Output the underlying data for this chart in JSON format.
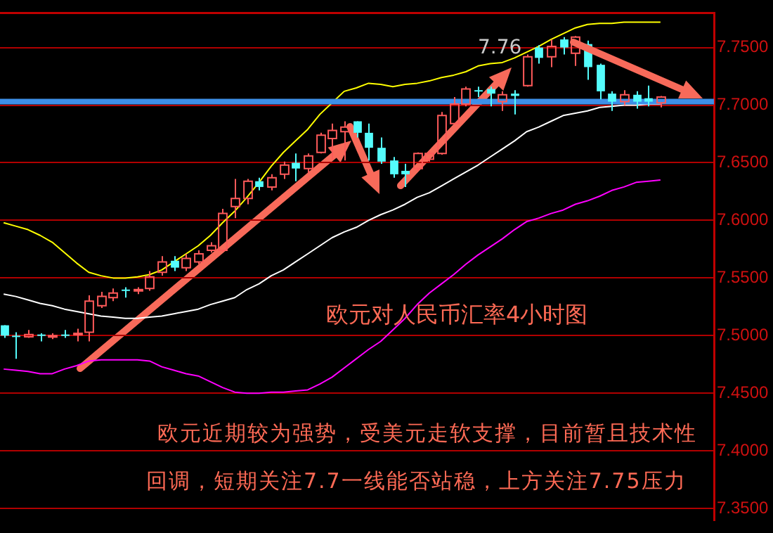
{
  "chart_data": {
    "type": "candlestick",
    "title": "欧元对人民币汇率4小时图",
    "annotations": [
      "欧元近期较为强势，受美元走软支撑，目前暂且技术性",
      "回调，短期关注7.7一线能否站稳，上方关注7.75压力",
      "7.76"
    ],
    "categories": [
      null,
      null,
      null,
      null,
      null,
      null,
      null,
      null,
      null,
      null,
      null,
      null,
      null,
      null,
      null,
      null,
      null,
      null,
      null,
      null,
      null,
      null,
      null,
      null,
      null,
      null,
      null,
      null,
      null,
      null,
      null,
      null,
      null,
      null,
      null,
      null,
      null,
      null,
      null,
      null,
      null,
      null,
      null,
      null,
      null,
      null,
      null,
      null,
      null,
      null,
      null,
      null,
      null,
      null,
      null
    ],
    "ohlc": [
      [
        7.509,
        7.509,
        7.498,
        7.5
      ],
      [
        7.5,
        7.503,
        7.48,
        7.499
      ],
      [
        7.499,
        7.505,
        7.498,
        7.501
      ],
      [
        7.501,
        7.502,
        7.495,
        7.5
      ],
      [
        7.499,
        7.502,
        7.497,
        7.5
      ],
      [
        7.501,
        7.505,
        7.498,
        7.5
      ],
      [
        7.501,
        7.506,
        7.495,
        7.502
      ],
      [
        7.503,
        7.535,
        7.495,
        7.53
      ],
      [
        7.526,
        7.538,
        7.524,
        7.534
      ],
      [
        7.533,
        7.541,
        7.53,
        7.537
      ],
      [
        7.54,
        7.542,
        7.533,
        7.539
      ],
      [
        7.539,
        7.542,
        7.536,
        7.54
      ],
      [
        7.541,
        7.556,
        7.539,
        7.551
      ],
      [
        7.555,
        7.569,
        7.552,
        7.564
      ],
      [
        7.565,
        7.569,
        7.556,
        7.559
      ],
      [
        7.559,
        7.571,
        7.556,
        7.567
      ],
      [
        7.564,
        7.574,
        7.562,
        7.571
      ],
      [
        7.574,
        7.581,
        7.572,
        7.578
      ],
      [
        7.574,
        7.61,
        7.573,
        7.606
      ],
      [
        7.612,
        7.636,
        7.602,
        7.619
      ],
      [
        7.619,
        7.636,
        7.614,
        7.634
      ],
      [
        7.634,
        7.637,
        7.626,
        7.629
      ],
      [
        7.629,
        7.64,
        7.626,
        7.637
      ],
      [
        7.64,
        7.651,
        7.636,
        7.648
      ],
      [
        7.65,
        7.658,
        7.634,
        7.645
      ],
      [
        7.645,
        7.658,
        7.641,
        7.656
      ],
      [
        7.659,
        7.676,
        7.658,
        7.674
      ],
      [
        7.671,
        7.684,
        7.653,
        7.678
      ],
      [
        7.677,
        7.686,
        7.652,
        7.681
      ],
      [
        7.686,
        7.686,
        7.672,
        7.676
      ],
      [
        7.676,
        7.684,
        7.652,
        7.663
      ],
      [
        7.663,
        7.672,
        7.649,
        7.651
      ],
      [
        7.652,
        7.655,
        7.637,
        7.64
      ],
      [
        7.643,
        7.649,
        7.629,
        7.64
      ],
      [
        7.645,
        7.659,
        7.643,
        7.658
      ],
      [
        7.653,
        7.66,
        7.651,
        7.658
      ],
      [
        7.658,
        7.694,
        7.657,
        7.691
      ],
      [
        7.684,
        7.707,
        7.684,
        7.701
      ],
      [
        7.701,
        7.716,
        7.699,
        7.714
      ],
      [
        7.713,
        7.716,
        7.707,
        7.712
      ],
      [
        7.714,
        7.716,
        7.699,
        7.71
      ],
      [
        7.703,
        7.712,
        7.695,
        7.709
      ],
      [
        7.71,
        7.713,
        7.692,
        7.708
      ],
      [
        7.717,
        7.744,
        7.716,
        7.742
      ],
      [
        7.75,
        7.752,
        7.736,
        7.741
      ],
      [
        7.742,
        7.757,
        7.733,
        7.751
      ],
      [
        7.757,
        7.759,
        7.744,
        7.75
      ],
      [
        7.745,
        7.76,
        7.734,
        7.759
      ],
      [
        7.753,
        7.756,
        7.722,
        7.733
      ],
      [
        7.735,
        7.736,
        7.705,
        7.712
      ],
      [
        7.71,
        7.712,
        7.695,
        7.703
      ],
      [
        7.703,
        7.713,
        7.7,
        7.709
      ],
      [
        7.709,
        7.712,
        7.697,
        7.703
      ],
      [
        7.706,
        7.717,
        7.699,
        7.703
      ],
      [
        7.702,
        7.708,
        7.698,
        7.707
      ]
    ],
    "colors": [
      "#54fcfc",
      "#54fcfc",
      "#ff5a5a",
      "#54fcfc",
      "#ff5a5a",
      "#54fcfc",
      "#ff5a5a",
      "#ff5a5a",
      "#ff5a5a",
      "#ff5a5a",
      "#54fcfc",
      "#ff5a5a",
      "#ff5a5a",
      "#ff5a5a",
      "#54fcfc",
      "#ff5a5a",
      "#ff5a5a",
      "#ff5a5a",
      "#ff5a5a",
      "#ff5a5a",
      "#ff5a5a",
      "#54fcfc",
      "#ff5a5a",
      "#ff5a5a",
      "#54fcfc",
      "#ff5a5a",
      "#ff5a5a",
      "#ff5a5a",
      "#ff5a5a",
      "#54fcfc",
      "#54fcfc",
      "#54fcfc",
      "#54fcfc",
      "#54fcfc",
      "#ff5a5a",
      "#ff5a5a",
      "#ff5a5a",
      "#ff5a5a",
      "#ff5a5a",
      "#54fcfc",
      "#54fcfc",
      "#ff5a5a",
      "#54fcfc",
      "#ff5a5a",
      "#54fcfc",
      "#ff5a5a",
      "#54fcfc",
      "#ff5a5a",
      "#54fcfc",
      "#54fcfc",
      "#54fcfc",
      "#ff5a5a",
      "#54fcfc",
      "#54fcfc",
      "#ff5a5a"
    ],
    "series": [
      {
        "type": "line",
        "color": "#ffff00",
        "values": [
          7.598,
          7.595,
          7.592,
          7.587,
          7.581,
          7.572,
          7.563,
          7.555,
          7.552,
          7.55,
          7.55,
          7.551,
          7.553,
          7.557,
          7.564,
          7.571,
          7.578,
          7.587,
          7.598,
          7.608,
          7.62,
          7.633,
          7.647,
          7.659,
          7.669,
          7.679,
          7.692,
          7.702,
          7.712,
          7.715,
          7.719,
          7.718,
          7.716,
          7.718,
          7.719,
          7.721,
          7.724,
          7.726,
          7.729,
          7.734,
          7.736,
          7.737,
          7.741,
          7.746,
          7.751,
          7.757,
          7.762,
          7.767,
          7.77,
          7.771,
          7.771,
          7.772,
          7.772,
          7.772,
          7.772
        ]
      },
      {
        "type": "line",
        "color": "#ffffff",
        "values": [
          7.536,
          7.534,
          7.531,
          7.528,
          7.526,
          7.523,
          7.521,
          7.519,
          7.517,
          7.516,
          7.515,
          7.515,
          7.516,
          7.517,
          7.519,
          7.521,
          7.523,
          7.527,
          7.53,
          7.533,
          7.54,
          7.545,
          7.552,
          7.557,
          7.564,
          7.571,
          7.578,
          7.585,
          7.59,
          7.594,
          7.6,
          7.605,
          7.609,
          7.614,
          7.62,
          7.624,
          7.63,
          7.636,
          7.642,
          7.648,
          7.655,
          7.662,
          7.669,
          7.677,
          7.681,
          7.686,
          7.691,
          7.693,
          7.695,
          7.698,
          7.699,
          7.7,
          7.7,
          7.701,
          7.701
        ]
      },
      {
        "type": "line",
        "color": "#ff00ff",
        "values": [
          7.471,
          7.47,
          7.469,
          7.467,
          7.467,
          7.471,
          7.474,
          7.478,
          7.479,
          7.479,
          7.479,
          7.479,
          7.478,
          7.473,
          7.47,
          7.467,
          7.465,
          7.46,
          7.455,
          7.451,
          7.45,
          7.45,
          7.451,
          7.451,
          7.452,
          7.453,
          7.458,
          7.464,
          7.472,
          7.48,
          7.488,
          7.495,
          7.505,
          7.515,
          7.527,
          7.537,
          7.545,
          7.553,
          7.562,
          7.57,
          7.577,
          7.584,
          7.592,
          7.599,
          7.602,
          7.606,
          7.609,
          7.614,
          7.617,
          7.621,
          7.626,
          7.629,
          7.633,
          7.634,
          7.635
        ]
      }
    ],
    "ref_lines": [
      {
        "axis": "y",
        "value": 7.703,
        "color": "#3d8fe8"
      }
    ],
    "ylim": [
      7.34,
      7.78
    ],
    "yticks": [
      {
        "value": 7.35,
        "label": "7.3500"
      },
      {
        "value": 7.4,
        "label": "7.4000"
      },
      {
        "value": 7.45,
        "label": "7.4500"
      },
      {
        "value": 7.5,
        "label": "7.5000"
      },
      {
        "value": 7.55,
        "label": "7.5500"
      },
      {
        "value": 7.6,
        "label": "7.6000"
      },
      {
        "value": 7.65,
        "label": "7.6500"
      },
      {
        "value": 7.7,
        "label": "7.7000"
      },
      {
        "value": 7.75,
        "label": "7.7500"
      }
    ],
    "grid": "y",
    "legend": false,
    "tick_labels": "y"
  }
}
